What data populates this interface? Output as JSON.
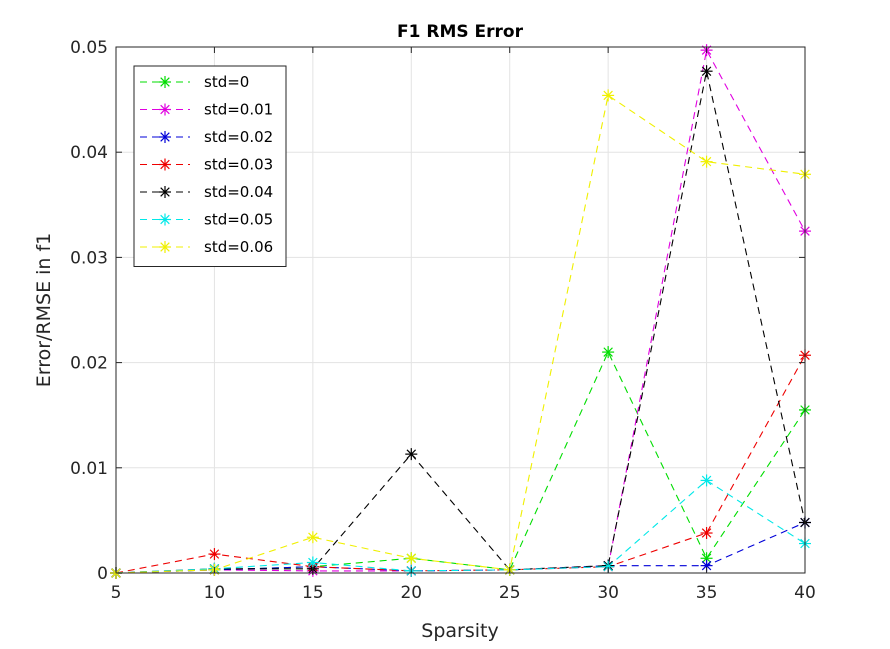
{
  "chart_data": {
    "type": "line",
    "title": "F1 RMS Error",
    "xlabel": "Sparsity",
    "ylabel": "Error/RMSE in f1",
    "xlim": [
      5,
      40
    ],
    "ylim": [
      0,
      0.05
    ],
    "x_ticks": [
      "5",
      "10",
      "15",
      "20",
      "25",
      "30",
      "35",
      "40"
    ],
    "y_ticks": [
      "0",
      "0.01",
      "0.02",
      "0.03",
      "0.04",
      "0.05"
    ],
    "grid": true,
    "legend_position": "top-left",
    "line_style": "dashed",
    "marker": "asterisk",
    "x": [
      5,
      10,
      15,
      20,
      25,
      30,
      35,
      40
    ],
    "series": [
      {
        "name": "std=0",
        "color": "#00dd00",
        "values": [
          0.0,
          0.0003,
          0.0006,
          0.0014,
          0.0003,
          0.021,
          0.0014,
          0.0155
        ]
      },
      {
        "name": "std=0.01",
        "color": "#e000e0",
        "values": [
          0.0,
          0.0003,
          0.0002,
          0.0002,
          0.0003,
          0.0006,
          0.0497,
          0.0325
        ]
      },
      {
        "name": "std=0.02",
        "color": "#0000d8",
        "values": [
          0.0,
          0.0003,
          0.0006,
          0.0002,
          0.0003,
          0.0007,
          0.0007,
          0.0048
        ]
      },
      {
        "name": "std=0.03",
        "color": "#ee0000",
        "values": [
          0.0,
          0.0018,
          0.0006,
          0.0002,
          0.0003,
          0.0006,
          0.0038,
          0.0207
        ]
      },
      {
        "name": "std=0.04",
        "color": "#000000",
        "values": [
          0.0,
          0.0004,
          0.0004,
          0.0113,
          0.0003,
          0.0007,
          0.0477,
          0.0048
        ]
      },
      {
        "name": "std=0.05",
        "color": "#00e8e8",
        "values": [
          0.0,
          0.0004,
          0.001,
          0.0002,
          0.0003,
          0.0006,
          0.0088,
          0.0028
        ]
      },
      {
        "name": "std=0.06",
        "color": "#f0f000",
        "values": [
          0.0,
          0.0003,
          0.0034,
          0.0014,
          0.0003,
          0.0454,
          0.0391,
          0.0379
        ]
      }
    ]
  }
}
